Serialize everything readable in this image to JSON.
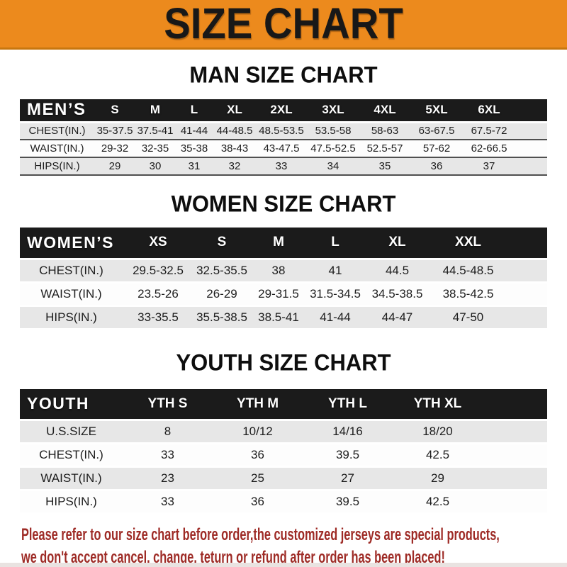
{
  "banner": {
    "title": "SIZE CHART",
    "bg_color": "#EC8A1D",
    "text_color": "#181818"
  },
  "sections": [
    {
      "id": "men",
      "title": "MAN SIZE CHART",
      "header_label": "MEN’S",
      "columns": [
        "S",
        "M",
        "L",
        "XL",
        "2XL",
        "3XL",
        "4XL",
        "5XL",
        "6XL"
      ],
      "rows": [
        {
          "label": "CHEST(IN.)",
          "values": [
            "35-37.5",
            "37.5-41",
            "41-44",
            "44-48.5",
            "48.5-53.5",
            "53.5-58",
            "58-63",
            "63-67.5",
            "67.5-72"
          ]
        },
        {
          "label": "WAIST(IN.)",
          "values": [
            "29-32",
            "32-35",
            "35-38",
            "38-43",
            "43-47.5",
            "47.5-52.5",
            "52.5-57",
            "57-62",
            "62-66.5"
          ]
        },
        {
          "label": "HIPS(IN.)",
          "values": [
            "29",
            "30",
            "31",
            "32",
            "33",
            "34",
            "35",
            "36",
            "37"
          ]
        }
      ]
    },
    {
      "id": "women",
      "title": "WOMEN SIZE CHART",
      "header_label": "WOMEN’S",
      "columns": [
        "XS",
        "S",
        "M",
        "L",
        "XL",
        "XXL"
      ],
      "rows": [
        {
          "label": "CHEST(IN.)",
          "values": [
            "29.5-32.5",
            "32.5-35.5",
            "38",
            "41",
            "44.5",
            "44.5-48.5"
          ]
        },
        {
          "label": "WAIST(IN.)",
          "values": [
            "23.5-26",
            "26-29",
            "29-31.5",
            "31.5-34.5",
            "34.5-38.5",
            "38.5-42.5"
          ]
        },
        {
          "label": "HIPS(IN.)",
          "values": [
            "33-35.5",
            "35.5-38.5",
            "38.5-41",
            "41-44",
            "44-47",
            "47-50"
          ]
        }
      ]
    },
    {
      "id": "youth",
      "title": "YOUTH SIZE CHART",
      "header_label": "YOUTH",
      "columns": [
        "YTH S",
        "YTH M",
        "YTH L",
        "YTH XL"
      ],
      "rows": [
        {
          "label": "U.S.SIZE",
          "values": [
            "8",
            "10/12",
            "14/16",
            "18/20"
          ]
        },
        {
          "label": "CHEST(IN.)",
          "values": [
            "33",
            "36",
            "39.5",
            "42.5"
          ]
        },
        {
          "label": "WAIST(IN.)",
          "values": [
            "23",
            "25",
            "27",
            "29"
          ]
        },
        {
          "label": "HIPS(IN.)",
          "values": [
            "33",
            "36",
            "39.5",
            "42.5"
          ]
        }
      ]
    }
  ],
  "footer": {
    "line1": "Please refer to our size chart before order,the customized jerseys are special products,",
    "line2": "we don't accept cancel, change, teturn or refund after order has been placed!",
    "text_color": "#9e2b26"
  }
}
